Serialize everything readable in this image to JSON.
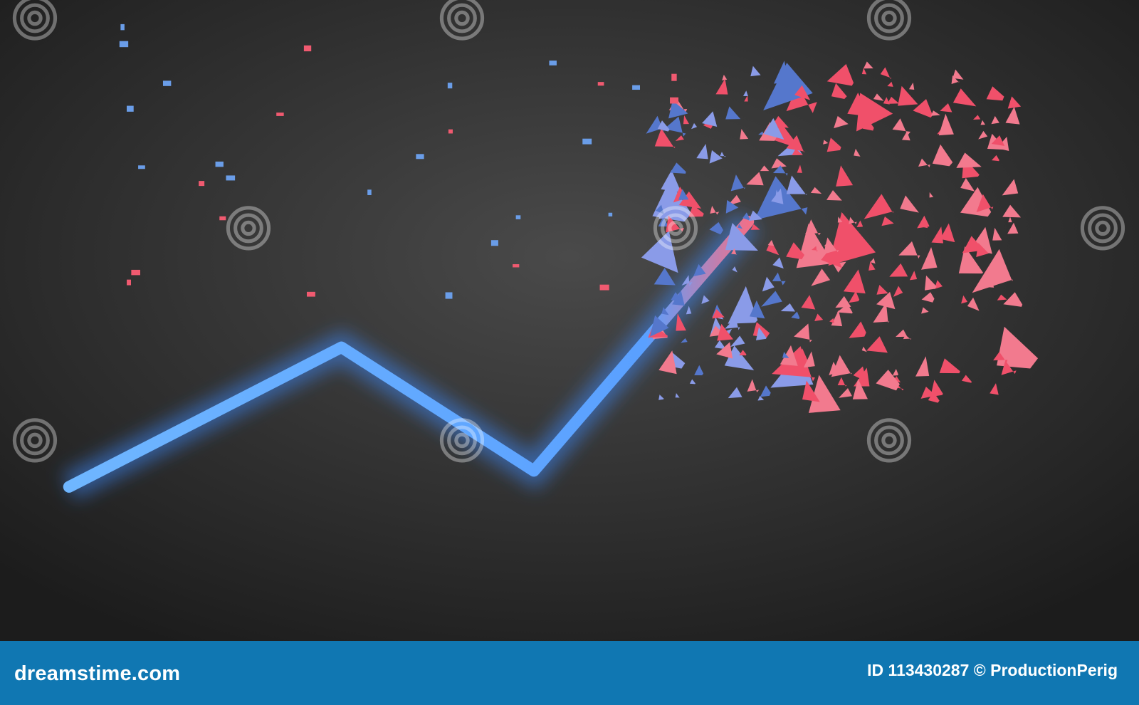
{
  "scene": {
    "subject": "glowing-line-shattering",
    "colors": {
      "background": "#2e2e2e",
      "line": "#5aa8ff",
      "shards": "#f0506a",
      "bar": "#1077b2"
    },
    "watermark": "dreamstime"
  },
  "footer": {
    "brand": "dreamstime.com",
    "credit": "ID 113430287 © ProductionPerig"
  }
}
